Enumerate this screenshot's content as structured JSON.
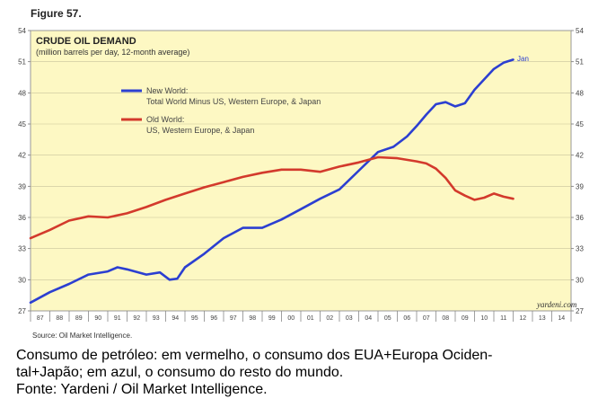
{
  "figure_label": "Figure 57.",
  "chart_data": {
    "type": "line",
    "title": "CRUDE OIL DEMAND",
    "subtitle": "(million barrels per day, 12-month average)",
    "source": "Source: Oil Market Intelligence.",
    "watermark": "yardeni.com",
    "end_annotation": "Jan",
    "ylim": [
      27,
      54
    ],
    "yticks": [
      "27",
      "30",
      "33",
      "36",
      "39",
      "42",
      "45",
      "48",
      "51",
      "54"
    ],
    "xlim": [
      1987,
      2015
    ],
    "xticks": [
      "87",
      "88",
      "89",
      "90",
      "91",
      "92",
      "93",
      "94",
      "95",
      "96",
      "97",
      "98",
      "99",
      "00",
      "01",
      "02",
      "03",
      "04",
      "05",
      "06",
      "07",
      "08",
      "09",
      "10",
      "11",
      "12",
      "13",
      "14"
    ],
    "series": [
      {
        "name": "New World:",
        "description": "Total World Minus US, Western Europe, & Japan",
        "color": "#2c3fd1",
        "x": [
          1987.0,
          1988.0,
          1989.0,
          1990.0,
          1991.0,
          1991.5,
          1992.0,
          1993.0,
          1993.7,
          1994.2,
          1994.6,
          1995.0,
          1996.0,
          1997.0,
          1998.0,
          1999.0,
          2000.0,
          2001.0,
          2002.0,
          2003.0,
          2004.0,
          2005.0,
          2005.8,
          2006.5,
          2007.0,
          2007.5,
          2008.0,
          2008.5,
          2009.0,
          2009.5,
          2010.0,
          2010.5,
          2011.0,
          2011.5,
          2012.0
        ],
        "y": [
          27.8,
          28.8,
          29.6,
          30.5,
          30.8,
          31.2,
          31.0,
          30.5,
          30.7,
          30.0,
          30.1,
          31.2,
          32.5,
          34.0,
          35.0,
          35.0,
          35.8,
          36.8,
          37.8,
          38.7,
          40.5,
          42.3,
          42.8,
          43.8,
          44.8,
          45.9,
          46.9,
          47.1,
          46.7,
          47.0,
          48.3,
          49.3,
          50.3,
          50.9,
          51.2
        ]
      },
      {
        "name": "Old World:",
        "description": "US, Western Europe, & Japan",
        "color": "#d33a2c",
        "x": [
          1987.0,
          1988.0,
          1989.0,
          1990.0,
          1991.0,
          1992.0,
          1993.0,
          1994.0,
          1995.0,
          1996.0,
          1997.0,
          1998.0,
          1999.0,
          2000.0,
          2001.0,
          2002.0,
          2003.0,
          2004.0,
          2005.0,
          2006.0,
          2007.0,
          2007.5,
          2008.0,
          2008.5,
          2009.0,
          2009.5,
          2010.0,
          2010.5,
          2011.0,
          2011.5,
          2012.0
        ],
        "y": [
          34.0,
          34.8,
          35.7,
          36.1,
          36.0,
          36.4,
          37.0,
          37.7,
          38.3,
          38.9,
          39.4,
          39.9,
          40.3,
          40.6,
          40.6,
          40.4,
          40.9,
          41.3,
          41.8,
          41.7,
          41.4,
          41.2,
          40.7,
          39.8,
          38.6,
          38.1,
          37.7,
          37.9,
          38.3,
          38.0,
          37.8
        ]
      }
    ]
  },
  "caption": {
    "line1": "Consumo de petróleo:  em vermelho, o consumo dos EUA+Europa Ociden-",
    "line2": "tal+Japão;  em azul, o consumo do resto do mundo.",
    "line3": "Fonte: Yardeni / Oil Market Intelligence."
  }
}
